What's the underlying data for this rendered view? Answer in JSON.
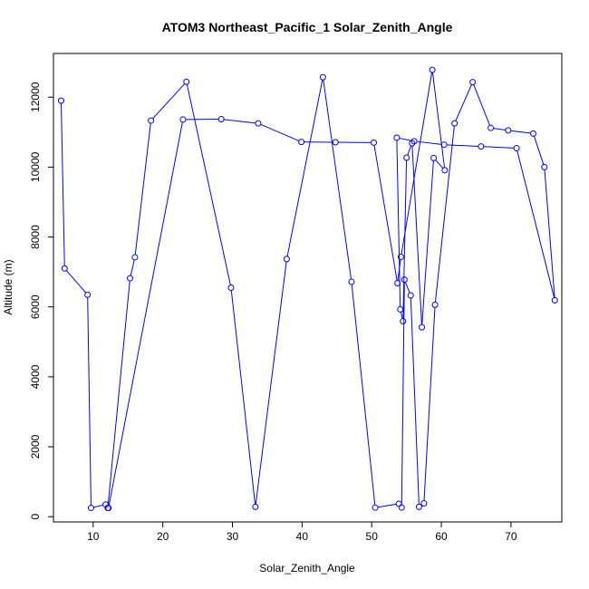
{
  "chart_data": {
    "type": "line",
    "title": "ATOM3 Northeast_Pacific_1 Solar_Zenith_Angle",
    "xlabel": "Solar_Zenith_Angle",
    "ylabel": "Altitude (m)",
    "xlim": [
      4.3,
      77.3
    ],
    "ylim": [
      -150,
      13250
    ],
    "x_ticks": [
      10,
      20,
      30,
      40,
      50,
      60,
      70
    ],
    "y_ticks": [
      0,
      2000,
      4000,
      6000,
      8000,
      10000,
      12000
    ],
    "grid": false,
    "marker": "open-circle",
    "colors": {
      "series": "#0000ff",
      "axis": "#000000"
    },
    "series": [
      {
        "x": [
          5.4,
          5.9,
          9.2,
          9.7,
          11.8,
          12.1,
          15.3,
          16.0,
          18.3,
          23.4,
          29.8,
          33.3,
          37.8,
          43.0,
          47.1,
          50.5,
          53.9,
          54.3,
          54.7,
          55.6,
          56.8,
          57.5,
          59.1,
          61.9,
          64.5,
          67.1,
          69.6,
          73.2,
          74.8,
          76.3,
          70.8,
          65.7,
          60.4,
          56.1,
          53.6,
          54.1,
          54.5,
          55.0,
          55.8,
          57.2,
          58.9,
          60.5,
          58.7,
          54.2,
          53.7,
          50.3,
          44.8,
          39.9,
          33.7,
          28.4,
          22.9,
          12.2
        ],
        "y": [
          11900,
          7100,
          6350,
          250,
          350,
          250,
          6820,
          7420,
          11330,
          12440,
          6550,
          280,
          7370,
          12570,
          6720,
          260,
          370,
          260,
          6780,
          6330,
          280,
          380,
          6060,
          11250,
          12430,
          11120,
          11050,
          10960,
          10000,
          6190,
          10540,
          10590,
          10640,
          10740,
          10840,
          5930,
          5590,
          10270,
          10680,
          5420,
          10260,
          9910,
          12780,
          7430,
          6680,
          10700,
          10710,
          10720,
          11250,
          11370,
          11360,
          250
        ]
      }
    ]
  }
}
